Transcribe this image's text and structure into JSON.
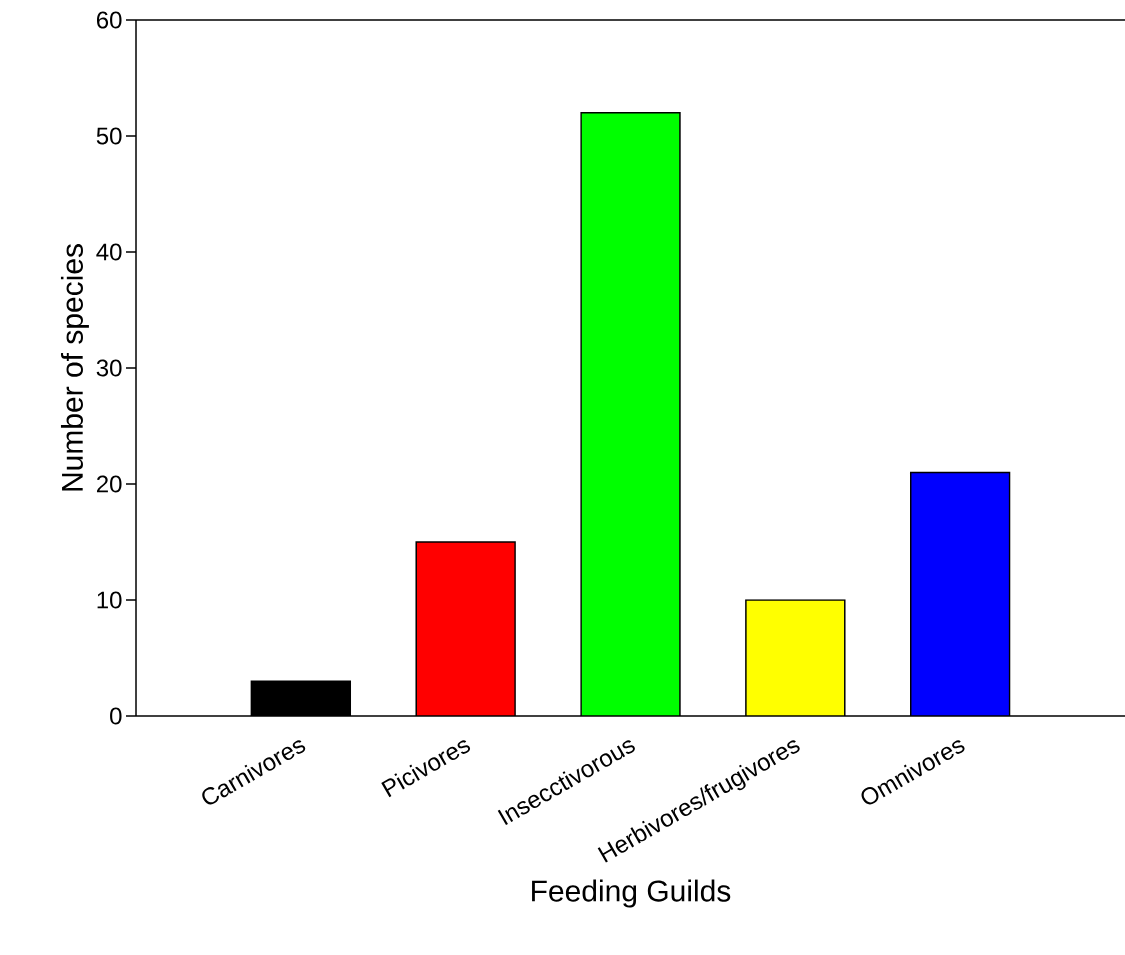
{
  "chart_data": {
    "type": "bar",
    "categories": [
      "Carnivores",
      "Picivores",
      "Insecctivorous",
      "Herbivores/frugivores",
      "Omnivores"
    ],
    "values": [
      3,
      15,
      52,
      10,
      21
    ],
    "colors": [
      "#000000",
      "#ff0000",
      "#00ff00",
      "#ffff00",
      "#0000ff"
    ],
    "xlabel": "Feeding Guilds",
    "ylabel": "Number of species",
    "ylim": [
      0,
      60
    ],
    "yticks": [
      0,
      10,
      20,
      30,
      40,
      50,
      60
    ],
    "grid": false
  }
}
